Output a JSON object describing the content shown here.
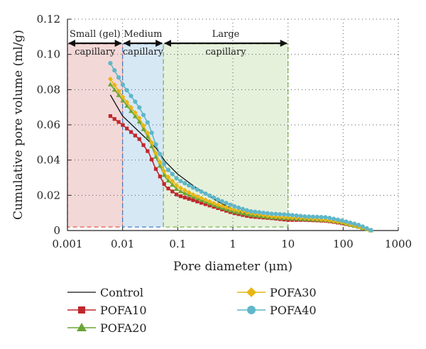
{
  "chart_data": {
    "type": "line",
    "xlabel": "Pore diameter (μm)",
    "ylabel": "Cumulative pore volume (ml/g)",
    "x_scale": "log",
    "xlim": [
      0.001,
      1000
    ],
    "ylim": [
      0,
      0.12
    ],
    "x_ticks": [
      "0.001",
      "0.01",
      "0.1",
      "1",
      "10",
      "100",
      "1000"
    ],
    "y_ticks": [
      "0",
      "0.02",
      "0.04",
      "0.06",
      "0.08",
      "0.10",
      "0.12"
    ],
    "grid": "dotted",
    "regions": [
      {
        "line1": "Small (gel)",
        "line2": "capillary",
        "x_range": [
          0.001,
          0.01
        ],
        "color": "#f2d4d4",
        "border": "#e05a4a"
      },
      {
        "line1": "Medium",
        "line2": "capillary",
        "x_range": [
          0.01,
          0.055
        ],
        "color": "#d3e6f4",
        "border": "#3d7fd0"
      },
      {
        "line1": "Large",
        "line2": "capillary",
        "x_range": [
          0.055,
          10
        ],
        "color": "#e3efd8",
        "border": "#7ab648"
      }
    ],
    "series": [
      {
        "name": "Control",
        "color": "#111111",
        "marker": "none",
        "x": [
          0.006,
          0.01,
          0.02,
          0.04,
          0.06,
          0.1,
          0.2,
          0.5,
          1,
          2,
          5,
          10,
          20,
          50,
          100,
          200,
          330
        ],
        "y": [
          0.077,
          0.065,
          0.056,
          0.047,
          0.039,
          0.032,
          0.025,
          0.017,
          0.012,
          0.009,
          0.008,
          0.007,
          0.006,
          0.0055,
          0.004,
          0.002,
          0
        ]
      },
      {
        "name": "POFA10",
        "color": "#c0272d",
        "marker": "square",
        "x": [
          0.006,
          0.01,
          0.02,
          0.03,
          0.04,
          0.06,
          0.1,
          0.2,
          0.5,
          1,
          2,
          5,
          10,
          20,
          50,
          100,
          200,
          330
        ],
        "y": [
          0.065,
          0.06,
          0.052,
          0.044,
          0.035,
          0.025,
          0.02,
          0.017,
          0.013,
          0.01,
          0.008,
          0.007,
          0.006,
          0.006,
          0.0055,
          0.004,
          0.002,
          0
        ]
      },
      {
        "name": "POFA20",
        "color": "#6aa535",
        "marker": "triangle",
        "x": [
          0.006,
          0.01,
          0.02,
          0.03,
          0.04,
          0.06,
          0.1,
          0.2,
          0.5,
          1,
          2,
          5,
          10,
          20,
          50,
          100,
          200,
          330
        ],
        "y": [
          0.083,
          0.074,
          0.062,
          0.052,
          0.042,
          0.03,
          0.023,
          0.019,
          0.014,
          0.011,
          0.009,
          0.0075,
          0.007,
          0.0065,
          0.006,
          0.0045,
          0.002,
          0
        ]
      },
      {
        "name": "POFA30",
        "color": "#e8b614",
        "marker": "diamond",
        "x": [
          0.006,
          0.01,
          0.02,
          0.03,
          0.04,
          0.06,
          0.1,
          0.2,
          0.5,
          1,
          2,
          5,
          10,
          20,
          50,
          100,
          200,
          330
        ],
        "y": [
          0.086,
          0.076,
          0.064,
          0.054,
          0.044,
          0.032,
          0.025,
          0.02,
          0.015,
          0.012,
          0.01,
          0.008,
          0.0075,
          0.007,
          0.006,
          0.0045,
          0.002,
          0
        ]
      },
      {
        "name": "POFA40",
        "color": "#5fb7c9",
        "marker": "circle",
        "x": [
          0.006,
          0.01,
          0.02,
          0.03,
          0.04,
          0.06,
          0.1,
          0.2,
          0.5,
          1,
          2,
          5,
          10,
          20,
          50,
          100,
          200,
          330
        ],
        "y": [
          0.095,
          0.083,
          0.07,
          0.06,
          0.049,
          0.036,
          0.029,
          0.024,
          0.018,
          0.014,
          0.011,
          0.0095,
          0.009,
          0.008,
          0.0075,
          0.0055,
          0.003,
          0
        ]
      }
    ],
    "legend_position": "bottom"
  }
}
